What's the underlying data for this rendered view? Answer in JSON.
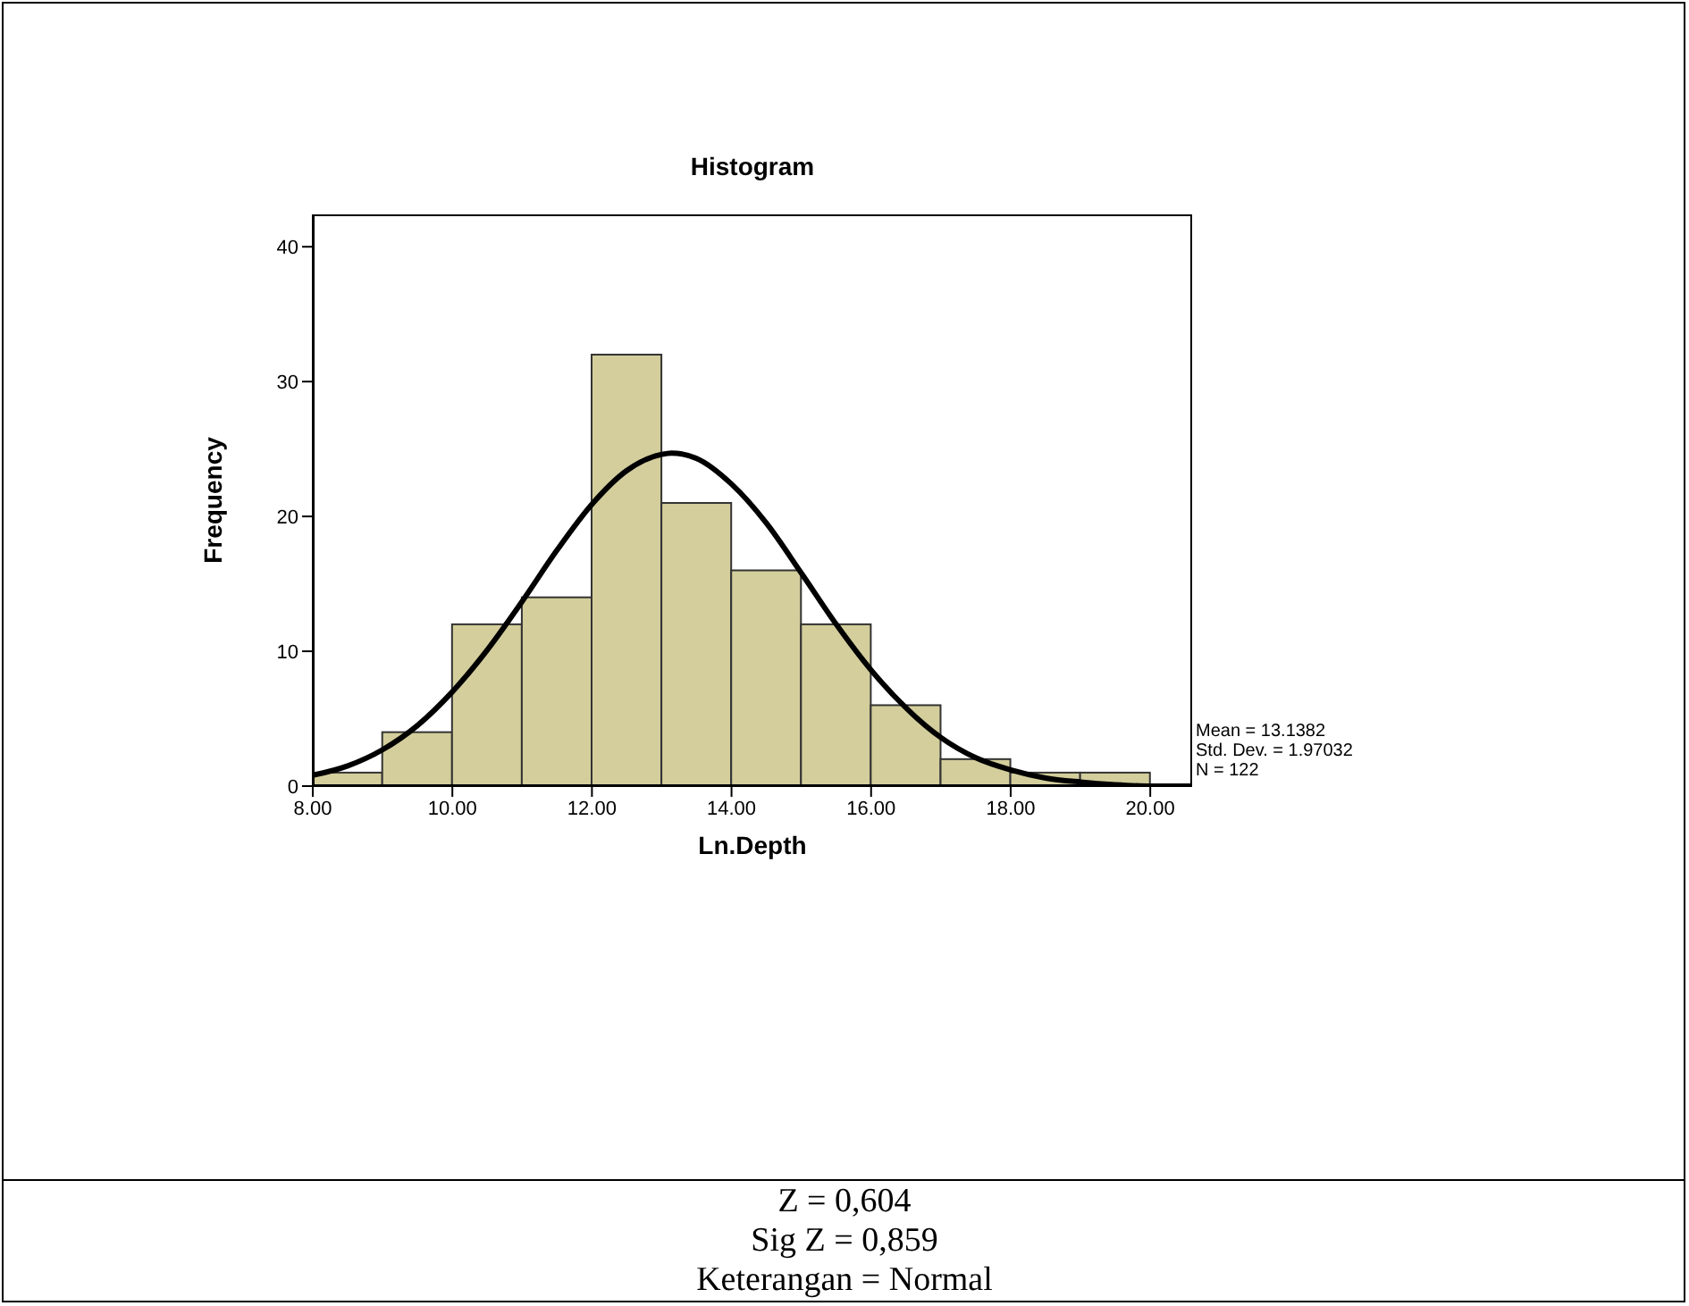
{
  "chart_data": {
    "type": "histogram",
    "title": "Histogram",
    "xlabel": "Ln.Depth",
    "ylabel": "Frequency",
    "bins": [
      8,
      9,
      10,
      11,
      12,
      13,
      14,
      15,
      16,
      17,
      18,
      19,
      20
    ],
    "values": [
      1,
      4,
      12,
      14,
      32,
      21,
      16,
      12,
      6,
      2,
      1,
      1
    ],
    "color": "#d3ce9c",
    "series": [
      {
        "type": "line",
        "color": "#000000",
        "x": [
          8,
          8.5,
          9,
          9.5,
          10,
          10.5,
          11,
          11.5,
          12,
          12.5,
          13,
          13.14,
          13.5,
          14,
          14.5,
          15,
          15.5,
          16,
          16.5,
          17,
          17.5,
          18,
          18.5,
          19,
          19.5,
          20,
          20.6
        ],
        "values": [
          0.8,
          1.5,
          2.7,
          4.5,
          7,
          10.1,
          13.7,
          17.5,
          20.9,
          23.4,
          24.6,
          24.7,
          24.3,
          22.4,
          19.5,
          15.8,
          12,
          8.6,
          5.8,
          3.6,
          2.1,
          1.2,
          0.6,
          0.3,
          0.1,
          0,
          0
        ]
      }
    ],
    "xlim": [
      8,
      20.6
    ],
    "ylim": [
      0,
      42.4
    ],
    "xticks": [
      {
        "value": 8,
        "label": "8.00"
      },
      {
        "value": 10,
        "label": "10.00"
      },
      {
        "value": 12,
        "label": "12.00"
      },
      {
        "value": 14,
        "label": "14.00"
      },
      {
        "value": 16,
        "label": "16.00"
      },
      {
        "value": 18,
        "label": "18.00"
      },
      {
        "value": 20,
        "label": "20.00"
      }
    ],
    "yticks": [
      0,
      10,
      20,
      30,
      40
    ],
    "marker": "none",
    "line_style": "solid",
    "annotations": [
      "Mean = 13.1382",
      "Std. Dev. = 1.97032",
      "N = 122",
      "Z = 0,604",
      "Sig Z = 0,859",
      "Keterangan = Normal"
    ]
  }
}
